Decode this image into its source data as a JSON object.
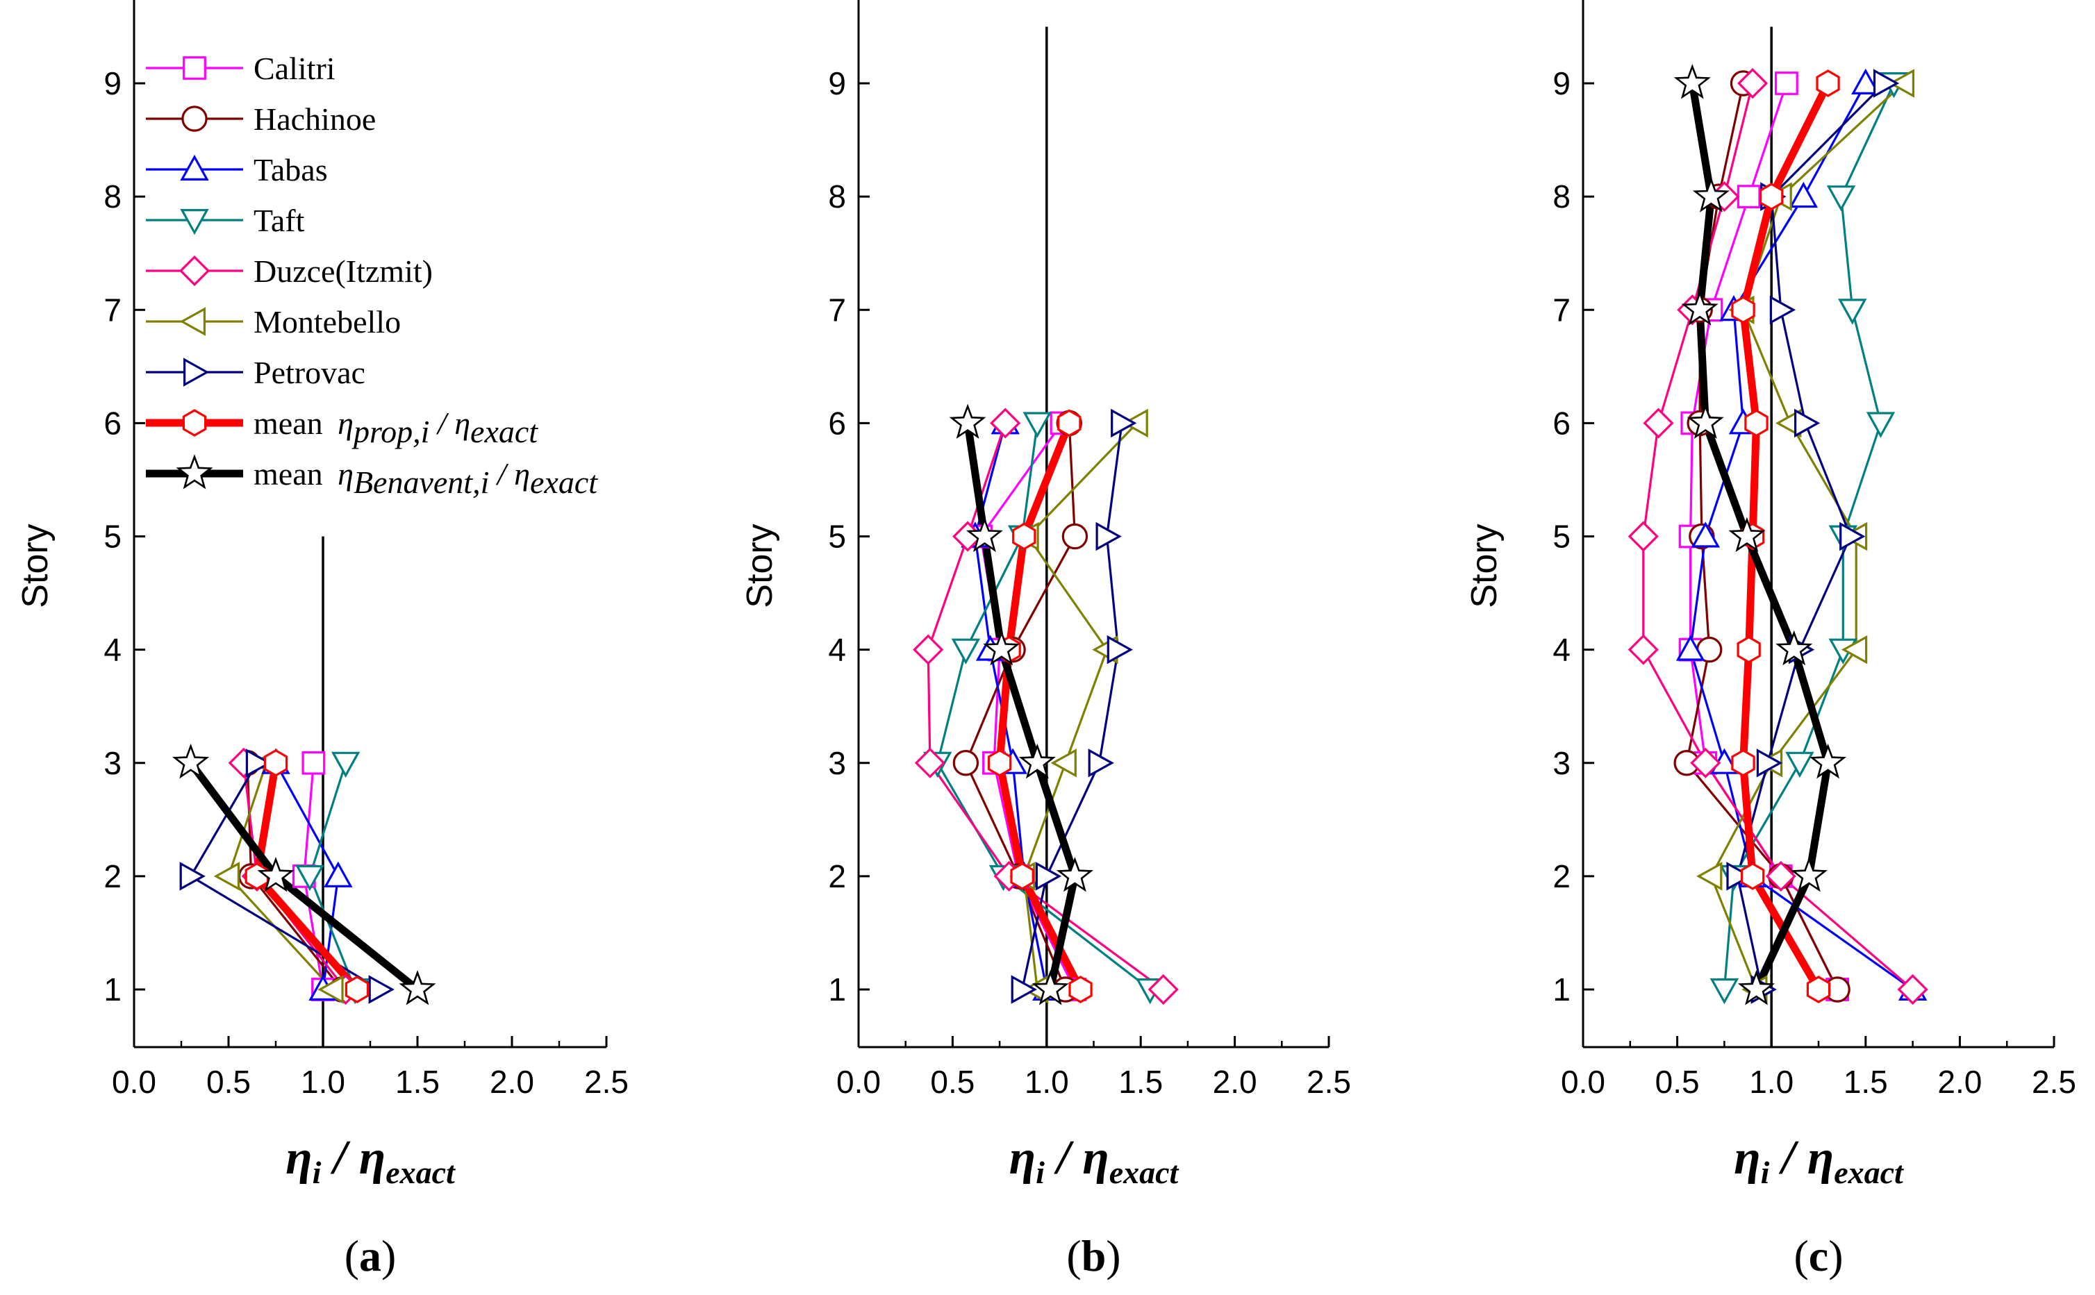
{
  "chart_data": [
    {
      "type": "line",
      "panel_caption": [
        "(",
        "a",
        ")"
      ],
      "ylabel": "Story",
      "xlabel": {
        "main": "η",
        "sub_i": "i",
        "slash": " / ",
        "main2": "η",
        "sub_exact": "exact"
      },
      "xlim": [
        0,
        2.5
      ],
      "ylim": [
        0.5,
        9.5
      ],
      "xticks": [
        "0.0",
        "0.5",
        "1.0",
        "1.5",
        "2.0",
        "2.5"
      ],
      "yticks": [
        "1",
        "2",
        "3",
        "4",
        "5",
        "6",
        "7",
        "8",
        "9"
      ],
      "reference_line": {
        "x": 1.0,
        "y_range": [
          0.5,
          5.0
        ]
      },
      "y": [
        1,
        2,
        3
      ],
      "series": [
        {
          "name": "Calitri",
          "color": "#ff00ff",
          "marker": "square",
          "x": [
            1.0,
            0.9,
            0.95
          ]
        },
        {
          "name": "Hachinoe",
          "color": "#800000",
          "marker": "circle",
          "x": [
            1.1,
            0.62,
            0.6
          ]
        },
        {
          "name": "Tabas",
          "color": "#0000ff",
          "marker": "triangle-up",
          "x": [
            1.0,
            1.08,
            0.75
          ]
        },
        {
          "name": "Taft",
          "color": "#008080",
          "marker": "triangle-down",
          "x": [
            1.17,
            0.93,
            1.12
          ]
        },
        {
          "name": "Duzce(Itzmit)",
          "color": "#ff0080",
          "marker": "diamond",
          "x": [
            1.12,
            0.65,
            0.58
          ]
        },
        {
          "name": "Montebello",
          "color": "#808000",
          "marker": "triangle-left",
          "x": [
            1.05,
            0.5,
            0.7
          ]
        },
        {
          "name": "Petrovac",
          "color": "#000080",
          "marker": "triangle-right",
          "x": [
            1.3,
            0.3,
            0.65
          ]
        },
        {
          "name": "mean",
          "name_math": {
            "base": "η",
            "sub": "prop,i",
            "slash": " / ",
            "base2": "η",
            "sub2": "exact"
          },
          "color": "#ff0000",
          "marker": "hexagon",
          "thick": true,
          "x": [
            1.18,
            0.65,
            0.75
          ]
        },
        {
          "name": "mean",
          "name_math": {
            "base": "η",
            "sub": "Benavent,i",
            "slash": " / ",
            "base2": "η",
            "sub2": "exact"
          },
          "color": "#000000",
          "marker": "star",
          "thick": true,
          "x": [
            1.5,
            0.75,
            0.3
          ]
        }
      ]
    },
    {
      "type": "line",
      "panel_caption": [
        "(",
        "b",
        ")"
      ],
      "ylabel": "Story",
      "xlabel": {
        "main": "η",
        "sub_i": "i",
        "slash": " / ",
        "main2": "η",
        "sub_exact": "exact"
      },
      "xlim": [
        0,
        2.5
      ],
      "ylim": [
        0.5,
        9.5
      ],
      "xticks": [
        "0.0",
        "0.5",
        "1.0",
        "1.5",
        "2.0",
        "2.5"
      ],
      "yticks": [
        "1",
        "2",
        "3",
        "4",
        "5",
        "6",
        "7",
        "8",
        "9"
      ],
      "reference_line": {
        "x": 1.0,
        "y_range": [
          0.5,
          9.5
        ]
      },
      "y": [
        1,
        2,
        3,
        4,
        5,
        6
      ],
      "series": [
        {
          "name": "Calitri",
          "color": "#ff00ff",
          "x": [
            1.15,
            0.85,
            0.72,
            0.75,
            0.65,
            1.08
          ]
        },
        {
          "name": "Hachinoe",
          "color": "#800000",
          "x": [
            1.1,
            0.85,
            0.57,
            0.82,
            1.15,
            1.12
          ]
        },
        {
          "name": "Tabas",
          "color": "#0000ff",
          "x": [
            1.0,
            0.88,
            0.82,
            0.7,
            0.62,
            0.78
          ]
        },
        {
          "name": "Taft",
          "color": "#008080",
          "x": [
            1.55,
            0.77,
            0.42,
            0.57,
            0.87,
            0.95
          ]
        },
        {
          "name": "Duzce(Itzmit)",
          "color": "#ff0080",
          "x": [
            1.62,
            0.8,
            0.38,
            0.37,
            0.58,
            0.78
          ]
        },
        {
          "name": "Montebello",
          "color": "#808000",
          "x": [
            0.95,
            0.88,
            1.1,
            1.32,
            0.9,
            1.48
          ]
        },
        {
          "name": "Petrovac",
          "color": "#000080",
          "x": [
            0.87,
            1.0,
            1.28,
            1.38,
            1.32,
            1.4
          ]
        },
        {
          "name": "mean",
          "color": "#ff0000",
          "thick": true,
          "x": [
            1.18,
            0.87,
            0.75,
            0.8,
            0.88,
            1.12
          ]
        },
        {
          "name": "mean",
          "color": "#000000",
          "thick": true,
          "x": [
            1.02,
            1.15,
            0.95,
            0.76,
            0.67,
            0.58
          ]
        }
      ]
    },
    {
      "type": "line",
      "panel_caption": [
        "(",
        "c",
        ")"
      ],
      "ylabel": "Story",
      "xlabel": {
        "main": "η",
        "sub_i": "i",
        "slash": " / ",
        "main2": "η",
        "sub_exact": "exact"
      },
      "xlim": [
        0,
        2.5
      ],
      "ylim": [
        0.5,
        9.5
      ],
      "xticks": [
        "0.0",
        "0.5",
        "1.0",
        "1.5",
        "2.0",
        "2.5"
      ],
      "yticks": [
        "1",
        "2",
        "3",
        "4",
        "5",
        "6",
        "7",
        "8",
        "9"
      ],
      "reference_line": {
        "x": 1.0,
        "y_range": [
          0.5,
          9.5
        ]
      },
      "y": [
        1,
        2,
        3,
        4,
        5,
        6,
        7,
        8,
        9
      ],
      "series": [
        {
          "name": "Calitri",
          "color": "#ff00ff",
          "x": [
            1.35,
            1.05,
            0.65,
            0.57,
            0.57,
            0.58,
            0.68,
            0.88,
            1.08
          ]
        },
        {
          "name": "Hachinoe",
          "color": "#800000",
          "x": [
            1.35,
            1.05,
            0.55,
            0.67,
            0.63,
            0.62,
            0.62,
            0.72,
            0.85
          ]
        },
        {
          "name": "Tabas",
          "color": "#0000ff",
          "x": [
            1.75,
            0.9,
            0.75,
            0.57,
            0.65,
            0.85,
            0.8,
            1.17,
            1.5
          ]
        },
        {
          "name": "Taft",
          "color": "#008080",
          "x": [
            0.75,
            0.8,
            1.15,
            1.38,
            1.38,
            1.58,
            1.43,
            1.37,
            1.65
          ]
        },
        {
          "name": "Duzce(Itzmit)",
          "color": "#ff0080",
          "x": [
            1.75,
            1.05,
            0.65,
            0.32,
            0.32,
            0.4,
            0.58,
            0.75,
            0.9
          ]
        },
        {
          "name": "Montebello",
          "color": "#808000",
          "x": [
            0.92,
            0.68,
            1.0,
            1.45,
            1.45,
            1.1,
            0.85,
            1.05,
            1.7
          ]
        },
        {
          "name": "Petrovac",
          "color": "#000080",
          "x": [
            0.95,
            0.82,
            0.98,
            1.15,
            1.42,
            1.18,
            1.05,
            1.0,
            1.6
          ]
        },
        {
          "name": "mean",
          "color": "#ff0000",
          "thick": true,
          "x": [
            1.25,
            0.9,
            0.85,
            0.88,
            0.9,
            0.92,
            0.85,
            1.0,
            1.3
          ]
        },
        {
          "name": "mean",
          "color": "#000000",
          "thick": true,
          "x": [
            0.92,
            1.2,
            1.3,
            1.12,
            0.87,
            0.65,
            0.62,
            0.68,
            0.58
          ]
        }
      ]
    }
  ]
}
